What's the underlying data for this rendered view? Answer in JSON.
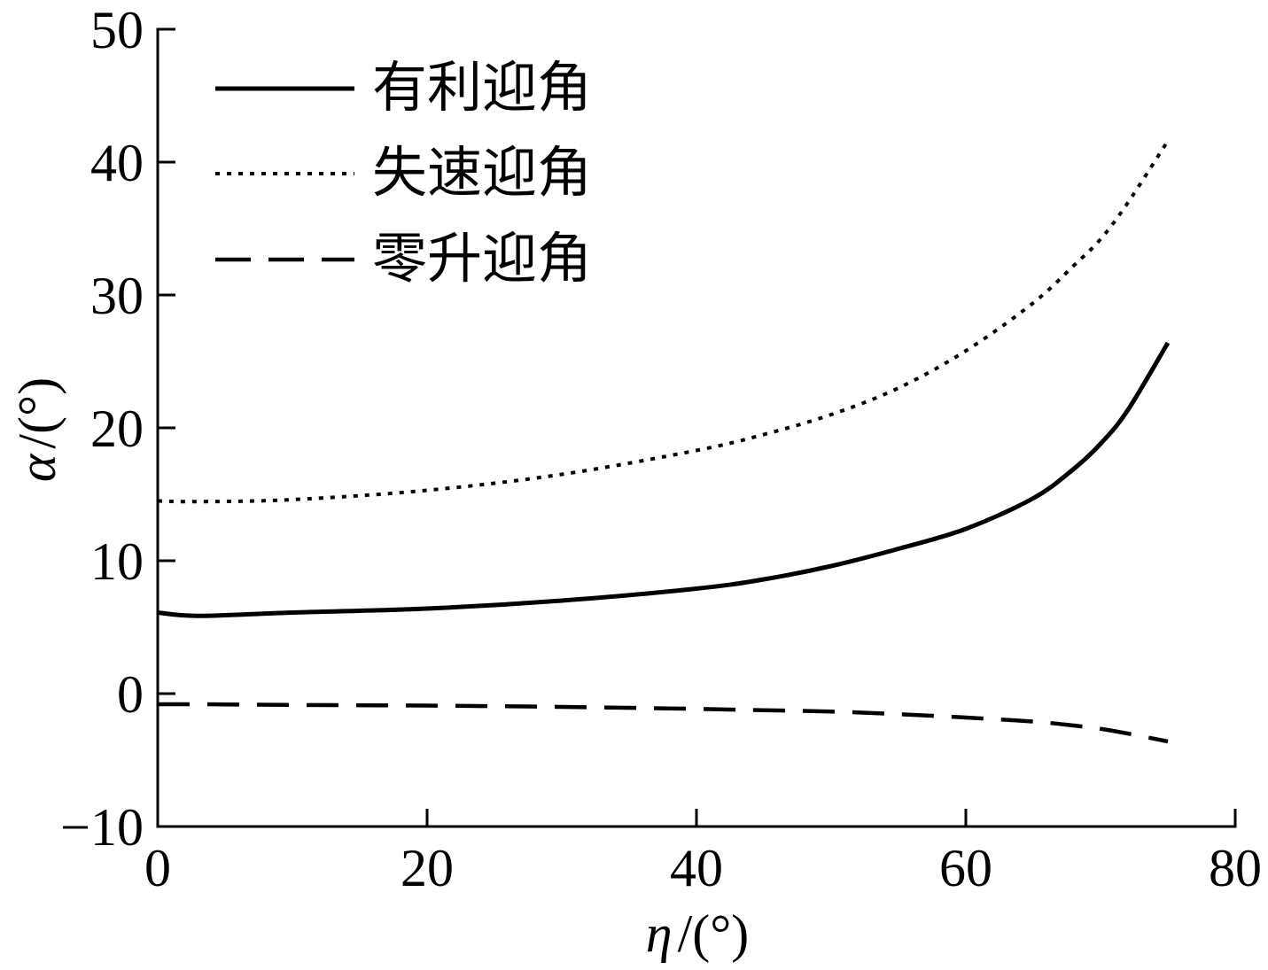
{
  "chart_data": {
    "type": "line",
    "xlabel": "η/(°)",
    "ylabel": "α/(°)",
    "xlim": [
      0,
      80
    ],
    "ylim": [
      -10,
      50
    ],
    "xticks": [
      0,
      20,
      40,
      60,
      80
    ],
    "xtick_labels": [
      "0",
      "20",
      "40",
      "60",
      "80"
    ],
    "yticks": [
      -10,
      0,
      10,
      20,
      30,
      40,
      50
    ],
    "ytick_labels": [
      "−10",
      "0",
      "10",
      "20",
      "30",
      "40",
      "50"
    ],
    "grid": false,
    "legend_position": "top-left",
    "x": [
      0,
      3,
      10,
      20,
      30,
      40,
      45,
      50,
      55,
      60,
      65,
      68,
      70,
      72,
      75
    ],
    "series": [
      {
        "name": "有利迎角",
        "line_style": "solid",
        "color": "#000000",
        "values": [
          6.1,
          5.85,
          6.1,
          6.4,
          7.0,
          7.9,
          8.6,
          9.6,
          10.9,
          12.4,
          14.7,
          16.9,
          18.8,
          21.3,
          26.4
        ]
      },
      {
        "name": "失速迎角",
        "line_style": "dotted",
        "color": "#000000",
        "values": [
          14.5,
          14.45,
          14.6,
          15.3,
          16.5,
          18.3,
          19.5,
          21.0,
          23.0,
          25.8,
          29.4,
          32.2,
          34.2,
          36.9,
          41.6
        ]
      },
      {
        "name": "零升迎角",
        "line_style": "dashed",
        "color": "#000000",
        "values": [
          -0.8,
          -0.8,
          -0.85,
          -0.9,
          -1.0,
          -1.15,
          -1.25,
          -1.35,
          -1.55,
          -1.8,
          -2.1,
          -2.4,
          -2.65,
          -3.0,
          -3.6
        ]
      }
    ]
  }
}
